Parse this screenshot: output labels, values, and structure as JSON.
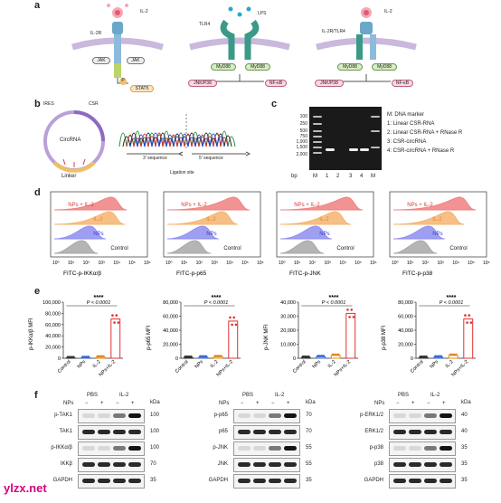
{
  "panel_letters": [
    "a",
    "b",
    "c",
    "d",
    "e",
    "f"
  ],
  "panel_a": {
    "ligands": [
      "IL-2",
      "LPS",
      "IL-2"
    ],
    "receptors": [
      "IL-2R",
      "TLR4",
      "IL-2R/TLR4"
    ],
    "nodes": {
      "jak1": "JAK",
      "jak2": "JAK",
      "stat5": "STAT5",
      "myd88_1": "MyD88",
      "myd88_2": "MyD88",
      "jnk1": "JNK/P38",
      "nfkb1": "NF-κB",
      "myd88_3": "MyD88",
      "myd88_4": "MyD88",
      "jnk2": "JNK/P38",
      "nfkb2": "NF-κB",
      "p": "P"
    }
  },
  "panel_b": {
    "circ_label": "CircRNA",
    "ires": "IRES",
    "csr": "CSR",
    "linker": "Linker",
    "seq3": "3′ sequence",
    "seq5": "5′ sequence",
    "ligation": "Ligation site"
  },
  "panel_c": {
    "ladder": [
      "100",
      "250",
      "500",
      "750",
      "1,000",
      "1,500",
      "2,000"
    ],
    "lanes": [
      "bp",
      "M",
      "1",
      "2",
      "3",
      "4",
      "M"
    ],
    "legend": [
      "M: DNA marker",
      "1: Linear CSR-RNA",
      "2: Linear CSR-RNA + RNase R",
      "3: CSR-circRNA",
      "4: CSR-circRNA + RNase R"
    ]
  },
  "panel_d": {
    "rows": [
      "NPs + IL-2",
      "IL-2",
      "NPs",
      "Control"
    ],
    "row_colors": [
      "#f08080",
      "#f6b470",
      "#8e8ef0",
      "#a8a8a8"
    ],
    "xlabels": [
      "FITC-p-IKKα/β",
      "FITC-p-p65",
      "FITC-p-JNK",
      "FITC-p-p38"
    ],
    "ticks": [
      "10⁰",
      "10¹",
      "10²",
      "10³",
      "10⁴",
      "10⁵",
      "10⁶"
    ]
  },
  "chart_data": [
    {
      "type": "bar",
      "title": "",
      "ylabel": "p-IKKα/β MFI",
      "categories": [
        "Control",
        "NPs",
        "IL-2",
        "NPs+IL-2"
      ],
      "values": [
        500,
        1000,
        2000,
        70000
      ],
      "ylim": [
        0,
        100000
      ],
      "yticks": [
        "0",
        "20,000",
        "40,000",
        "60,000",
        "80,000",
        "100,000"
      ],
      "significance": "****",
      "pvalue": "P < 0.0001"
    },
    {
      "type": "bar",
      "title": "",
      "ylabel": "p-p65 MFI",
      "categories": [
        "Control",
        "NPs",
        "IL-2",
        "NPs+IL-2"
      ],
      "values": [
        1000,
        1500,
        2000,
        53000
      ],
      "ylim": [
        0,
        80000
      ],
      "yticks": [
        "0",
        "20,000",
        "40,000",
        "60,000",
        "80,000"
      ],
      "significance": "****",
      "pvalue": "P < 0.0001"
    },
    {
      "type": "bar",
      "title": "",
      "ylabel": "p-JNK MFI",
      "categories": [
        "Control",
        "NPs",
        "IL-2",
        "NPs+IL-2"
      ],
      "values": [
        500,
        1000,
        2000,
        32000
      ],
      "ylim": [
        0,
        40000
      ],
      "yticks": [
        "0",
        "10,000",
        "20,000",
        "30,000",
        "40,000"
      ],
      "significance": "****",
      "pvalue": "P < 0.0001"
    },
    {
      "type": "bar",
      "title": "",
      "ylabel": "p-p38 MFI",
      "categories": [
        "Control",
        "NPs",
        "IL-2",
        "NPs+IL-2"
      ],
      "values": [
        1000,
        1500,
        4000,
        56000
      ],
      "ylim": [
        0,
        80000
      ],
      "yticks": [
        "0",
        "20,000",
        "40,000",
        "60,000",
        "80,000"
      ],
      "significance": "****",
      "pvalue": "P < 0.0001"
    }
  ],
  "panel_f": {
    "groups": [
      "PBS",
      "IL-2"
    ],
    "nps_label": "NPs",
    "signs": [
      "−",
      "+",
      "−",
      "+"
    ],
    "kda": "kDa",
    "blots": [
      {
        "rows": [
          {
            "name": "p-TAK1",
            "kda": "100"
          },
          {
            "name": "TAK1",
            "kda": "100"
          },
          {
            "name": "p-IKKα/β",
            "kda": "100"
          },
          {
            "name": "IKKβ",
            "kda": "70"
          },
          {
            "name": "GAPDH",
            "kda": "35"
          }
        ]
      },
      {
        "rows": [
          {
            "name": "p-p65",
            "kda": "70"
          },
          {
            "name": "p65",
            "kda": "70"
          },
          {
            "name": "p-JNK",
            "kda": "55"
          },
          {
            "name": "JNK",
            "kda": "55"
          },
          {
            "name": "GAPDH",
            "kda": "35"
          }
        ]
      },
      {
        "rows": [
          {
            "name": "p-ERK1/2",
            "kda": "40"
          },
          {
            "name": "ERK1/2",
            "kda": "40"
          },
          {
            "name": "p-p38",
            "kda": "35"
          },
          {
            "name": "p38",
            "kda": "35"
          },
          {
            "name": "GAPDH",
            "kda": "35"
          }
        ]
      }
    ]
  },
  "watermark": "ylzx.net"
}
